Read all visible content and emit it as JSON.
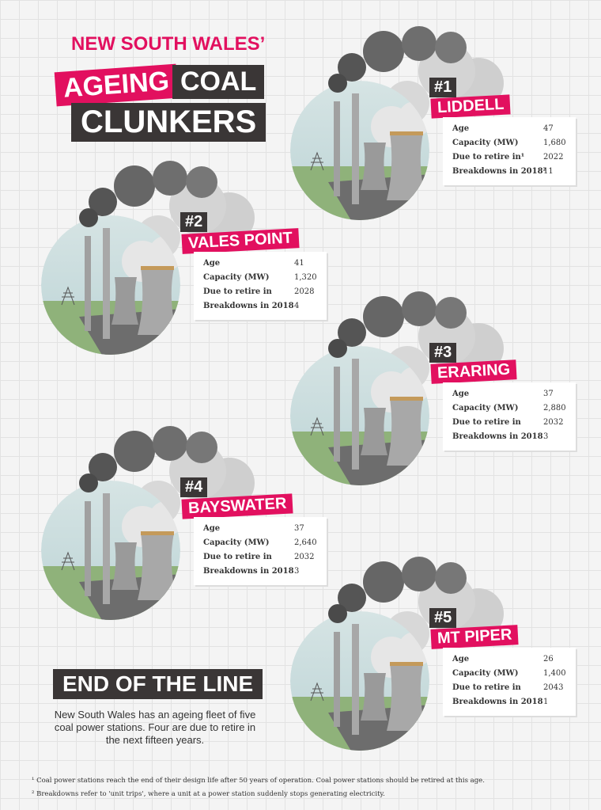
{
  "header": {
    "line1": "NEW SOUTH WALES’",
    "word1": "AGEING",
    "word2": "COAL",
    "word3": "CLUNKERS"
  },
  "stations": [
    {
      "rank": "#1",
      "name": "LIDDELL",
      "rows": [
        [
          "Age",
          "47"
        ],
        [
          "Capacity (MW)",
          "1,680"
        ],
        [
          "Due to retire in¹",
          "2022"
        ],
        [
          "Breakdowns in 2018²",
          "11"
        ]
      ]
    },
    {
      "rank": "#2",
      "name": "VALES POINT",
      "rows": [
        [
          "Age",
          "41"
        ],
        [
          "Capacity (MW)",
          "1,320"
        ],
        [
          "Due to retire in",
          "2028"
        ],
        [
          "Breakdowns in 2018",
          "4"
        ]
      ]
    },
    {
      "rank": "#3",
      "name": "ERARING",
      "rows": [
        [
          "Age",
          "37"
        ],
        [
          "Capacity (MW)",
          "2,880"
        ],
        [
          "Due to retire in",
          "2032"
        ],
        [
          "Breakdowns in 2018",
          "3"
        ]
      ]
    },
    {
      "rank": "#4",
      "name": "BAYSWATER",
      "rows": [
        [
          "Age",
          "37"
        ],
        [
          "Capacity (MW)",
          "2,640"
        ],
        [
          "Due to retire in",
          "2032"
        ],
        [
          "Breakdowns in 2018",
          "3"
        ]
      ]
    },
    {
      "rank": "#5",
      "name": "MT PIPER",
      "rows": [
        [
          "Age",
          "26"
        ],
        [
          "Capacity (MW)",
          "1,400"
        ],
        [
          "Due to retire in",
          "2043"
        ],
        [
          "Breakdowns in 2018",
          "1"
        ]
      ]
    }
  ],
  "summary": {
    "title": "END OF THE LINE",
    "text": "New South Wales has an ageing fleet of five coal power stations. Four are due to retire in the next fifteen years."
  },
  "footnotes": [
    "¹ Coal power stations reach the end of their design life after 50 years of operation. Coal power stations should be retired at this age.",
    "² Breakdowns refer to 'unit trips', where a unit at a power station suddenly stops generating electricity."
  ]
}
